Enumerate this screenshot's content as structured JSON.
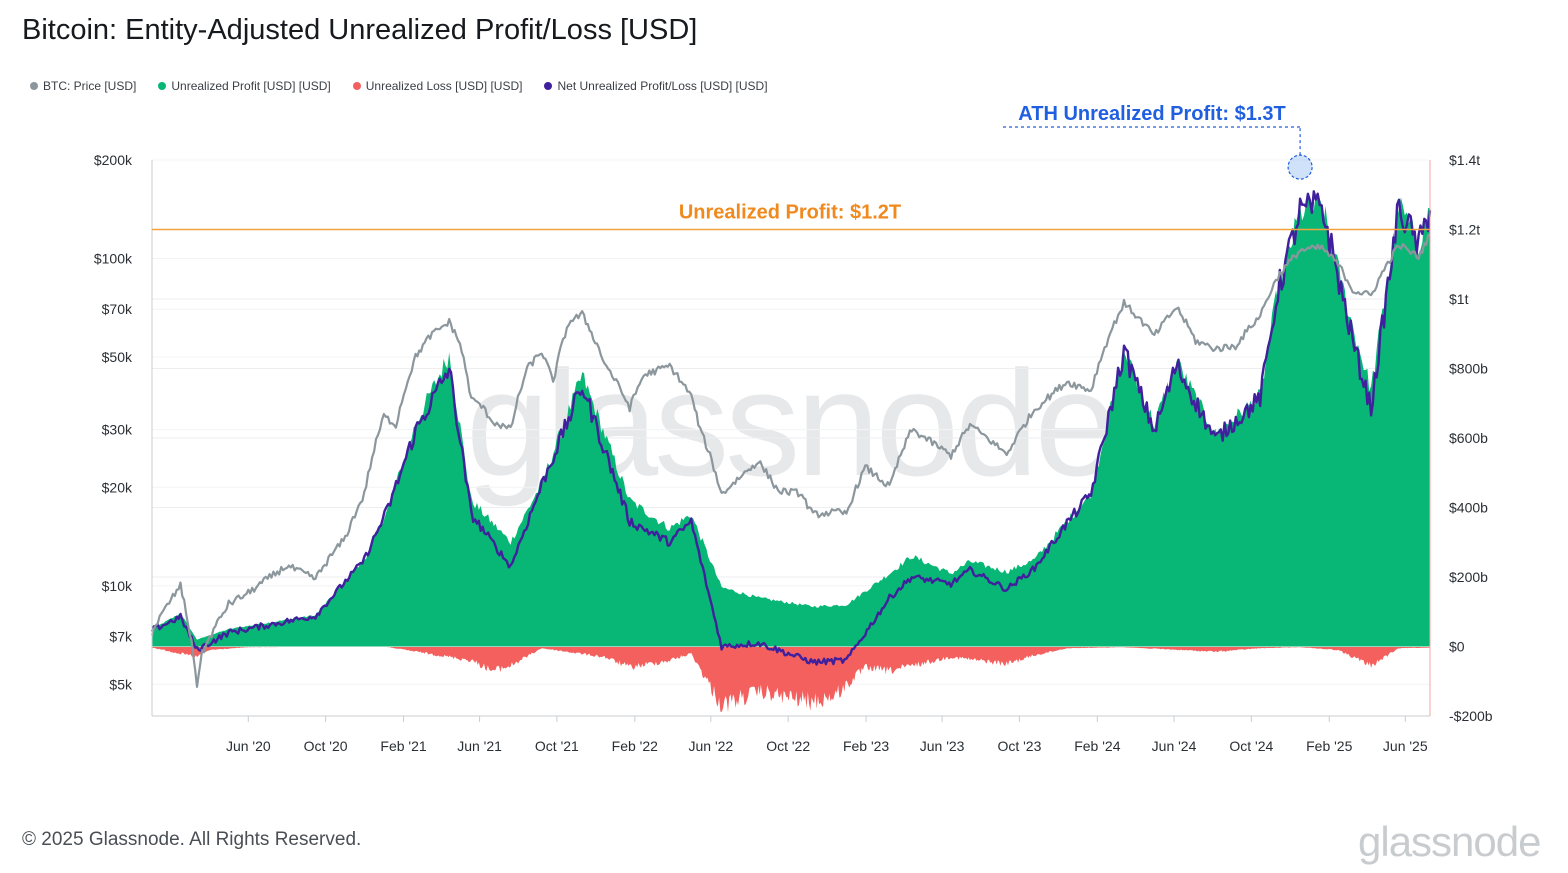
{
  "title": "Bitcoin: Entity-Adjusted Unrealized Profit/Loss [USD]",
  "legend": [
    {
      "label": "BTC: Price [USD]",
      "color": "#8c979d"
    },
    {
      "label": "Unrealized Profit [USD] [USD]",
      "color": "#08b776"
    },
    {
      "label": "Unrealized Loss [USD] [USD]",
      "color": "#f3605e"
    },
    {
      "label": "Net Unrealized Profit/Loss [USD] [USD]",
      "color": "#40209c"
    }
  ],
  "footer": {
    "copyright": "© 2025 Glassnode. All Rights Reserved.",
    "brand": "glassnode"
  },
  "watermark": "glassnode",
  "colors": {
    "price": "#8c979d",
    "profit": "#08b776",
    "loss": "#f3605e",
    "net": "#40209c",
    "hline": "#f5a23c",
    "annotation_orange": "#f08a1e",
    "annotation_blue": "#1f5fe0",
    "grid": "#eceef0",
    "axis": "#c9cdd1"
  },
  "chart_data": {
    "type": "area",
    "x_ticks": [
      "Jun '20",
      "Oct '20",
      "Feb '21",
      "Jun '21",
      "Oct '21",
      "Feb '22",
      "Jun '22",
      "Oct '22",
      "Feb '23",
      "Jun '23",
      "Oct '23",
      "Feb '24",
      "Jun '24",
      "Oct '24",
      "Feb '25",
      "Jun '25"
    ],
    "x_tick_dates": [
      "2020-06-01",
      "2020-10-01",
      "2021-02-01",
      "2021-06-01",
      "2021-10-01",
      "2022-02-01",
      "2022-06-01",
      "2022-10-01",
      "2023-02-01",
      "2023-06-01",
      "2023-10-01",
      "2024-02-01",
      "2024-06-01",
      "2024-10-01",
      "2025-02-01",
      "2025-06-01"
    ],
    "x_range": [
      "2020-01-01",
      "2025-07-10"
    ],
    "left_axis": {
      "label": "",
      "scale": "log",
      "range": [
        4000,
        200000
      ],
      "ticks": [
        200000,
        100000,
        70000,
        50000,
        30000,
        20000,
        10000,
        7000,
        5000
      ],
      "tick_labels": [
        "$200k",
        "$100k",
        "$70k",
        "$50k",
        "$30k",
        "$20k",
        "$10k",
        "$7k",
        "$5k"
      ]
    },
    "right_axis": {
      "label": "",
      "scale": "linear",
      "range": [
        -200,
        1400
      ],
      "unit": "billion USD",
      "ticks": [
        1400,
        1200,
        1000,
        800,
        600,
        400,
        200,
        0,
        -200
      ],
      "tick_labels": [
        "$1.4t",
        "$1.2t",
        "$1t",
        "$800b",
        "$600b",
        "$400b",
        "$200b",
        "$0",
        "-$200b"
      ]
    },
    "series": [
      {
        "name": "BTC: Price [USD]",
        "axis": "left",
        "unit": "USD",
        "x": [
          "2020-01-01",
          "2020-02-15",
          "2020-03-12",
          "2020-03-20",
          "2020-05-01",
          "2020-06-01",
          "2020-08-01",
          "2020-09-15",
          "2020-11-01",
          "2020-12-01",
          "2021-01-01",
          "2021-01-20",
          "2021-02-20",
          "2021-03-15",
          "2021-04-14",
          "2021-05-01",
          "2021-05-19",
          "2021-06-01",
          "2021-06-22",
          "2021-07-20",
          "2021-08-15",
          "2021-09-07",
          "2021-09-25",
          "2021-10-20",
          "2021-11-10",
          "2021-12-15",
          "2022-01-24",
          "2022-02-15",
          "2022-03-28",
          "2022-05-01",
          "2022-05-15",
          "2022-06-18",
          "2022-08-15",
          "2022-09-15",
          "2022-10-20",
          "2022-11-09",
          "2022-12-15",
          "2023-01-01",
          "2023-01-31",
          "2023-03-10",
          "2023-04-14",
          "2023-06-15",
          "2023-07-15",
          "2023-09-11",
          "2023-10-25",
          "2023-12-15",
          "2024-01-22",
          "2024-03-14",
          "2024-05-01",
          "2024-06-05",
          "2024-07-05",
          "2024-08-05",
          "2024-09-06",
          "2024-10-15",
          "2024-11-12",
          "2024-12-17",
          "2025-01-20",
          "2025-02-15",
          "2025-03-10",
          "2025-04-08",
          "2025-05-22",
          "2025-06-22",
          "2025-07-10"
        ],
        "y": [
          7200,
          10000,
          5000,
          6200,
          8800,
          9500,
          11500,
          10500,
          14000,
          19000,
          33000,
          31000,
          50000,
          58000,
          64000,
          55000,
          37000,
          36000,
          31700,
          30000,
          46000,
          52000,
          42000,
          64000,
          67500,
          48000,
          35000,
          44000,
          47000,
          38000,
          30000,
          19000,
          24000,
          19500,
          19200,
          16500,
          16800,
          16600,
          23000,
          20000,
          30000,
          25000,
          31000,
          25200,
          34500,
          42000,
          39500,
          73000,
          58000,
          71000,
          56000,
          53000,
          54000,
          67000,
          88000,
          106000,
          108000,
          96000,
          80000,
          77000,
          110000,
          101000,
          118000
        ]
      },
      {
        "name": "Unrealized Profit [USD] [USD]",
        "axis": "right",
        "unit": "billion USD",
        "x": [
          "2020-01-01",
          "2020-02-15",
          "2020-03-12",
          "2020-05-01",
          "2020-09-15",
          "2020-12-01",
          "2021-01-08",
          "2021-02-20",
          "2021-04-14",
          "2021-05-19",
          "2021-07-20",
          "2021-09-07",
          "2021-11-10",
          "2022-01-24",
          "2022-03-28",
          "2022-05-01",
          "2022-06-18",
          "2022-08-15",
          "2022-11-09",
          "2023-01-01",
          "2023-03-10",
          "2023-04-14",
          "2023-06-15",
          "2023-07-15",
          "2023-09-11",
          "2023-10-25",
          "2023-12-15",
          "2024-01-22",
          "2024-03-14",
          "2024-05-01",
          "2024-06-05",
          "2024-08-05",
          "2024-10-15",
          "2024-11-12",
          "2024-12-17",
          "2025-01-20",
          "2025-03-10",
          "2025-04-08",
          "2025-05-22",
          "2025-06-22",
          "2025-07-10"
        ],
        "y": [
          50,
          95,
          20,
          50,
          90,
          250,
          400,
          640,
          840,
          420,
          300,
          470,
          780,
          420,
          340,
          380,
          170,
          140,
          115,
          120,
          210,
          260,
          210,
          245,
          215,
          250,
          360,
          440,
          850,
          640,
          820,
          610,
          720,
          1030,
          1250,
          1270,
          920,
          740,
          1270,
          1160,
          1260
        ]
      },
      {
        "name": "Unrealized Loss [USD] [USD]",
        "axis": "right",
        "unit": "billion USD",
        "x": [
          "2020-01-01",
          "2020-03-12",
          "2020-04-01",
          "2020-06-01",
          "2021-01-01",
          "2021-05-19",
          "2021-06-22",
          "2021-07-20",
          "2021-09-07",
          "2021-12-15",
          "2022-01-24",
          "2022-03-28",
          "2022-05-01",
          "2022-06-18",
          "2022-08-15",
          "2022-11-09",
          "2022-12-15",
          "2023-01-31",
          "2023-03-10",
          "2023-06-15",
          "2023-09-11",
          "2023-10-25",
          "2023-12-15",
          "2024-03-14",
          "2024-08-05",
          "2024-10-15",
          "2024-12-17",
          "2025-02-15",
          "2025-04-08",
          "2025-05-22",
          "2025-07-10"
        ],
        "y": [
          -3,
          -30,
          -10,
          -2,
          0,
          -40,
          -70,
          -55,
          -5,
          -30,
          -60,
          -40,
          -20,
          -170,
          -130,
          -160,
          -140,
          -60,
          -70,
          -30,
          -50,
          -25,
          -5,
          -2,
          -15,
          -5,
          -2,
          -10,
          -55,
          -5,
          -3
        ]
      },
      {
        "name": "Net Unrealized Profit/Loss [USD] [USD]",
        "axis": "right",
        "unit": "billion USD",
        "x": [
          "2020-01-01",
          "2020-02-15",
          "2020-03-12",
          "2020-05-01",
          "2020-09-15",
          "2020-12-01",
          "2021-01-08",
          "2021-02-20",
          "2021-04-14",
          "2021-05-19",
          "2021-07-20",
          "2021-09-07",
          "2021-11-10",
          "2022-01-24",
          "2022-03-28",
          "2022-05-01",
          "2022-06-18",
          "2022-08-15",
          "2022-11-09",
          "2023-01-01",
          "2023-03-10",
          "2023-04-14",
          "2023-06-15",
          "2023-07-15",
          "2023-09-11",
          "2023-10-25",
          "2023-12-15",
          "2024-01-22",
          "2024-03-14",
          "2024-05-01",
          "2024-06-05",
          "2024-08-05",
          "2024-10-15",
          "2024-11-12",
          "2024-12-17",
          "2025-01-20",
          "2025-03-10",
          "2025-04-08",
          "2025-05-22",
          "2025-06-22",
          "2025-07-10"
        ],
        "y": [
          47,
          85,
          -10,
          40,
          88,
          250,
          400,
          620,
          800,
          380,
          230,
          465,
          750,
          360,
          300,
          360,
          0,
          10,
          -45,
          -40,
          140,
          200,
          180,
          220,
          165,
          225,
          355,
          440,
          850,
          620,
          810,
          595,
          715,
          1025,
          1250,
          1270,
          880,
          685,
          1265,
          1150,
          1255
        ]
      }
    ],
    "reference_line": {
      "axis": "right",
      "value": 1200,
      "label": "Unrealized Profit: $1.2T"
    },
    "callout": {
      "date": "2024-12-17",
      "value": 1250,
      "label": "ATH Unrealized Profit: $1.3T"
    },
    "grid": true,
    "legend_position": "top-left"
  }
}
